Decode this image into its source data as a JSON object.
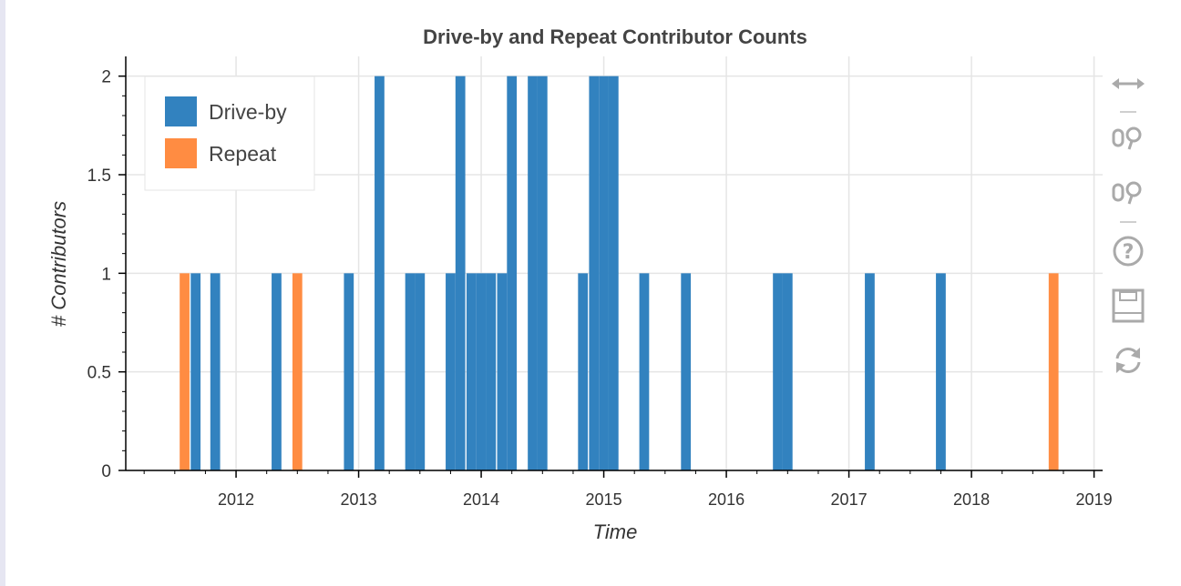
{
  "chart_data": {
    "type": "bar",
    "title": "Drive-by and Repeat Contributor Counts",
    "xlabel": "Time",
    "ylabel": "# Contributors",
    "xlim": [
      2011.1,
      2019.07
    ],
    "ylim": [
      0,
      2.1
    ],
    "x_ticks": [
      "2012",
      "2013",
      "2014",
      "2015",
      "2016",
      "2017",
      "2018",
      "2019"
    ],
    "y_ticks": [
      "0",
      "0.5",
      "1",
      "1.5",
      "2"
    ],
    "grid": true,
    "legend_position": "top-left",
    "bar_width_years": 0.08,
    "series": [
      {
        "name": "Drive-by",
        "color": "#3282bf",
        "points": [
          [
            2011.67,
            1
          ],
          [
            2011.83,
            1
          ],
          [
            2012.33,
            1
          ],
          [
            2012.92,
            1
          ],
          [
            2013.17,
            2
          ],
          [
            2013.42,
            1
          ],
          [
            2013.5,
            1
          ],
          [
            2013.75,
            1
          ],
          [
            2013.83,
            2
          ],
          [
            2013.92,
            1
          ],
          [
            2014.0,
            1
          ],
          [
            2014.08,
            1
          ],
          [
            2014.17,
            1
          ],
          [
            2014.25,
            2
          ],
          [
            2014.42,
            2
          ],
          [
            2014.5,
            2
          ],
          [
            2014.83,
            1
          ],
          [
            2014.92,
            2
          ],
          [
            2015.0,
            2
          ],
          [
            2015.08,
            2
          ],
          [
            2015.33,
            1
          ],
          [
            2015.67,
            1
          ],
          [
            2016.42,
            1
          ],
          [
            2016.5,
            1
          ],
          [
            2017.17,
            1
          ],
          [
            2017.75,
            1
          ]
        ]
      },
      {
        "name": "Repeat",
        "color": "#ff8c42",
        "points": [
          [
            2011.58,
            1
          ],
          [
            2012.5,
            1
          ],
          [
            2018.67,
            1
          ]
        ]
      }
    ]
  },
  "toolbar": {
    "tools": [
      {
        "name": "pan-tool",
        "icon": "horizontal-arrows-icon"
      },
      {
        "name": "wheel-zoom-tool",
        "icon": "magnifier-icon"
      },
      {
        "name": "box-zoom-tool",
        "icon": "magnifier-icon"
      },
      {
        "name": "help-tool",
        "icon": "question-icon"
      },
      {
        "name": "save-tool",
        "icon": "floppy-disk-icon"
      },
      {
        "name": "reset-tool",
        "icon": "refresh-icon"
      }
    ]
  }
}
